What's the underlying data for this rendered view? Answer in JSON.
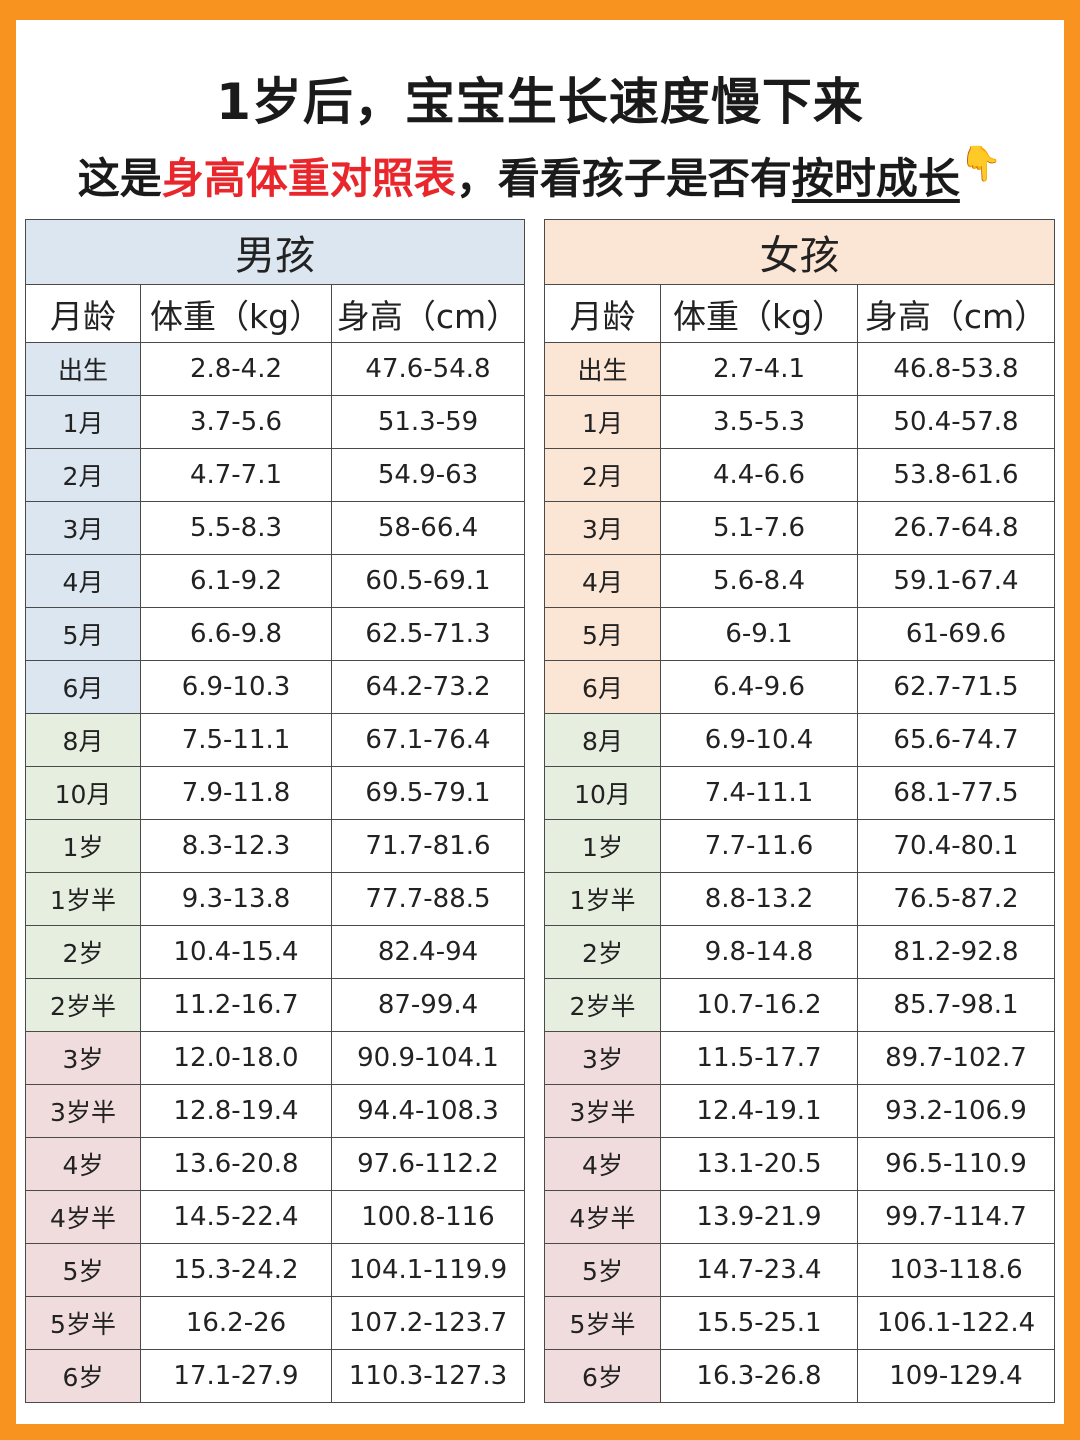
{
  "header": {
    "title": "1岁后，宝宝生长速度慢下来",
    "subtitle_part1": "这是",
    "subtitle_highlight": "身高体重对照表",
    "subtitle_part2": "，看看孩子是否",
    "subtitle_part3": "有",
    "subtitle_underlined": "按时成长",
    "hand_icon": "👇"
  },
  "colors": {
    "frame": "#f7931e",
    "highlight_red": "#e8262b",
    "boys_header_bg": "#dce6f0",
    "girls_header_bg": "#fbe5d5",
    "infant_green": "#e6eedf",
    "child_pink": "#f0dcdc"
  },
  "boys": {
    "title": "男孩",
    "columns": [
      "月龄",
      "体重（kg）",
      "身高（cm）"
    ],
    "rows": [
      {
        "age": "出生",
        "weight": "2.8-4.2",
        "height": "47.6-54.8"
      },
      {
        "age": "1月",
        "weight": "3.7-5.6",
        "height": "51.3-59"
      },
      {
        "age": "2月",
        "weight": "4.7-7.1",
        "height": "54.9-63"
      },
      {
        "age": "3月",
        "weight": "5.5-8.3",
        "height": "58-66.4"
      },
      {
        "age": "4月",
        "weight": "6.1-9.2",
        "height": "60.5-69.1"
      },
      {
        "age": "5月",
        "weight": "6.6-9.8",
        "height": "62.5-71.3"
      },
      {
        "age": "6月",
        "weight": "6.9-10.3",
        "height": "64.2-73.2"
      },
      {
        "age": "8月",
        "weight": "7.5-11.1",
        "height": "67.1-76.4"
      },
      {
        "age": "10月",
        "weight": "7.9-11.8",
        "height": "69.5-79.1"
      },
      {
        "age": "1岁",
        "weight": "8.3-12.3",
        "height": "71.7-81.6"
      },
      {
        "age": "1岁半",
        "weight": "9.3-13.8",
        "height": "77.7-88.5"
      },
      {
        "age": "2岁",
        "weight": "10.4-15.4",
        "height": "82.4-94"
      },
      {
        "age": "2岁半",
        "weight": "11.2-16.7",
        "height": "87-99.4"
      },
      {
        "age": "3岁",
        "weight": "12.0-18.0",
        "height": "90.9-104.1"
      },
      {
        "age": "3岁半",
        "weight": "12.8-19.4",
        "height": "94.4-108.3"
      },
      {
        "age": "4岁",
        "weight": "13.6-20.8",
        "height": "97.6-112.2"
      },
      {
        "age": "4岁半",
        "weight": "14.5-22.4",
        "height": "100.8-116"
      },
      {
        "age": "5岁",
        "weight": "15.3-24.2",
        "height": "104.1-119.9"
      },
      {
        "age": "5岁半",
        "weight": "16.2-26",
        "height": "107.2-123.7"
      },
      {
        "age": "6岁",
        "weight": "17.1-27.9",
        "height": "110.3-127.3"
      }
    ]
  },
  "girls": {
    "title": "女孩",
    "columns": [
      "月龄",
      "体重（kg）",
      "身高（cm）"
    ],
    "rows": [
      {
        "age": "出生",
        "weight": "2.7-4.1",
        "height": "46.8-53.8"
      },
      {
        "age": "1月",
        "weight": "3.5-5.3",
        "height": "50.4-57.8"
      },
      {
        "age": "2月",
        "weight": "4.4-6.6",
        "height": "53.8-61.6"
      },
      {
        "age": "3月",
        "weight": "5.1-7.6",
        "height": "26.7-64.8"
      },
      {
        "age": "4月",
        "weight": "5.6-8.4",
        "height": "59.1-67.4"
      },
      {
        "age": "5月",
        "weight": "6-9.1",
        "height": "61-69.6"
      },
      {
        "age": "6月",
        "weight": "6.4-9.6",
        "height": "62.7-71.5"
      },
      {
        "age": "8月",
        "weight": "6.9-10.4",
        "height": "65.6-74.7"
      },
      {
        "age": "10月",
        "weight": "7.4-11.1",
        "height": "68.1-77.5"
      },
      {
        "age": "1岁",
        "weight": "7.7-11.6",
        "height": "70.4-80.1"
      },
      {
        "age": "1岁半",
        "weight": "8.8-13.2",
        "height": "76.5-87.2"
      },
      {
        "age": "2岁",
        "weight": "9.8-14.8",
        "height": "81.2-92.8"
      },
      {
        "age": "2岁半",
        "weight": "10.7-16.2",
        "height": "85.7-98.1"
      },
      {
        "age": "3岁",
        "weight": "11.5-17.7",
        "height": "89.7-102.7"
      },
      {
        "age": "3岁半",
        "weight": "12.4-19.1",
        "height": "93.2-106.9"
      },
      {
        "age": "4岁",
        "weight": "13.1-20.5",
        "height": "96.5-110.9"
      },
      {
        "age": "4岁半",
        "weight": "13.9-21.9",
        "height": "99.7-114.7"
      },
      {
        "age": "5岁",
        "weight": "14.7-23.4",
        "height": "103-118.6"
      },
      {
        "age": "5岁半",
        "weight": "15.5-25.1",
        "height": "106.1-122.4"
      },
      {
        "age": "6岁",
        "weight": "16.3-26.8",
        "height": "109-129.4"
      }
    ]
  }
}
